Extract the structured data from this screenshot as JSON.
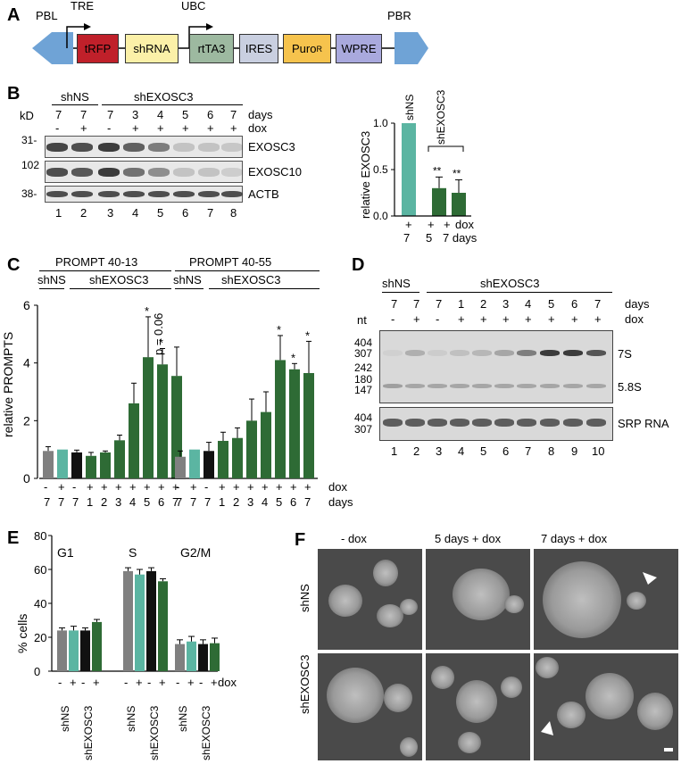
{
  "panels": {
    "A": {
      "letter": "A",
      "elements": [
        "PBL",
        "TRE",
        "tRFP",
        "shRNA",
        "UBC",
        "rtTA3",
        "IRES",
        "Puro",
        "R",
        "WPRE",
        "PBR"
      ],
      "colors": {
        "tRFP": "#c0202a",
        "shRNA": "#fbf0a8",
        "rtTA3": "#9db9a0",
        "IRES": "#c9cfe0",
        "Puro": "#f6c34d",
        "WPRE": "#a9a9dd",
        "arrow": "#6fa3d6"
      }
    },
    "B": {
      "letter": "B",
      "groups": [
        "shNS",
        "shEXOSC3"
      ],
      "kd": "kD",
      "days_label": "days",
      "dox_label": "dox",
      "days": [
        "7",
        "7",
        "7",
        "3",
        "4",
        "5",
        "6",
        "7"
      ],
      "dox": [
        "-",
        "+",
        "-",
        "+",
        "+",
        "+",
        "+",
        "+"
      ],
      "markers": [
        "31-",
        "102",
        "38-"
      ],
      "blots": [
        "EXOSC3",
        "EXOSC10",
        "ACTB"
      ],
      "lanes": [
        "1",
        "2",
        "3",
        "4",
        "5",
        "6",
        "7",
        "8"
      ],
      "bar": {
        "ylabel": "relative EXOSC3",
        "yticks": [
          "1.0",
          "0.5",
          "0.0"
        ],
        "labels": [
          "shNS",
          "shEXOSC3"
        ],
        "sig": [
          "**",
          "**"
        ],
        "dox": [
          "+",
          "+",
          "+",
          "dox"
        ],
        "days": [
          "7",
          "5",
          "7 days"
        ]
      }
    },
    "C": {
      "letter": "C",
      "titles": [
        "PROMPT 40-13",
        "PROMPT 40-55"
      ],
      "groups": [
        "shNS",
        "shEXOSC3",
        "shNS",
        "shEXOSC3"
      ],
      "ylabel": "relative PROMPTS",
      "yticks": [
        "6",
        "4",
        "2",
        "0"
      ],
      "p_label": "p = 0.06",
      "sig": "*",
      "dox": [
        "-",
        "+",
        "-",
        "+",
        "+",
        "+",
        "+",
        "+",
        "+",
        "+"
      ],
      "days": [
        "7",
        "7",
        "7",
        "1",
        "2",
        "3",
        "4",
        "5",
        "6",
        "7"
      ],
      "dox_label": "dox",
      "days_label": "days"
    },
    "D": {
      "letter": "D",
      "groups": [
        "shNS",
        "shEXOSC3"
      ],
      "nt": "nt",
      "days_label": "days",
      "dox_label": "dox",
      "days": [
        "7",
        "7",
        "7",
        "1",
        "2",
        "3",
        "4",
        "5",
        "6",
        "7"
      ],
      "dox": [
        "-",
        "+",
        "-",
        "+",
        "+",
        "+",
        "+",
        "+",
        "+",
        "+"
      ],
      "markers_top": [
        "404",
        "307",
        "242",
        "180",
        "147"
      ],
      "markers_bottom": [
        "404",
        "307"
      ],
      "bands": [
        "7S",
        "5.8S",
        "SRP RNA"
      ],
      "lanes": [
        "1",
        "2",
        "3",
        "4",
        "5",
        "6",
        "7",
        "8",
        "9",
        "10"
      ]
    },
    "E": {
      "letter": "E",
      "ylabel": "% cells",
      "yticks": [
        "80",
        "60",
        "40",
        "20",
        "0"
      ],
      "phases": [
        "G1",
        "S",
        "G2/M"
      ],
      "dox": [
        "-",
        "+",
        "-",
        "+",
        "-",
        "+",
        "-",
        "+",
        "-",
        "+",
        "-",
        "+"
      ],
      "dox_label": "dox",
      "groups": [
        "shNS",
        "shEXOSC3",
        "shNS",
        "shEXOSC3",
        "shNS",
        "shEXOSC3"
      ]
    },
    "F": {
      "letter": "F",
      "cols": [
        "- dox",
        "5 days + dox",
        "7 days + dox"
      ],
      "rows": [
        "shNS",
        "shEXOSC3"
      ]
    }
  },
  "chart_data": [
    {
      "type": "bar",
      "panel": "B",
      "categories": [
        "shNS 7d +dox",
        "shEXOSC3 5d +dox",
        "shEXOSC3 7d +dox"
      ],
      "values": [
        1.0,
        0.3,
        0.25
      ],
      "errors": [
        0,
        0.12,
        0.14
      ],
      "colors": [
        "#5bb5a2",
        "#2e6b35",
        "#2e6b35"
      ],
      "ylim": [
        0,
        1.0
      ],
      "ylabel": "relative EXOSC3"
    },
    {
      "type": "bar",
      "panel": "C",
      "series": [
        {
          "name": "PROMPT 40-13",
          "values": [
            0.95,
            1.0,
            0.9,
            0.78,
            0.9,
            1.32,
            2.6,
            4.2,
            3.95,
            3.55
          ],
          "errors": [
            0.15,
            0,
            0.08,
            0.12,
            0.05,
            0.18,
            0.7,
            1.4,
            0.55,
            1.0
          ]
        },
        {
          "name": "PROMPT 40-55",
          "values": [
            0.75,
            1.0,
            0.95,
            1.3,
            1.4,
            2.0,
            2.3,
            4.1,
            3.78,
            3.65
          ],
          "errors": [
            0.2,
            0,
            0.3,
            0.3,
            0.35,
            0.75,
            0.7,
            0.85,
            0.2,
            1.1
          ]
        }
      ],
      "colors": [
        "#808080",
        "#5bb5a2",
        "#111111",
        "#2e6b35",
        "#2e6b35",
        "#2e6b35",
        "#2e6b35",
        "#2e6b35",
        "#2e6b35",
        "#2e6b35"
      ],
      "ylim": [
        0,
        6
      ],
      "ylabel": "relative PROMPTS"
    },
    {
      "type": "bar",
      "panel": "E",
      "categories": [
        "G1",
        "S",
        "G2/M"
      ],
      "series": [
        {
          "name": "shNS -dox",
          "values": [
            24,
            59,
            16
          ],
          "errors": [
            1.5,
            2,
            2.5
          ]
        },
        {
          "name": "shNS +dox",
          "values": [
            24,
            57,
            17.5
          ],
          "errors": [
            2.5,
            3,
            3
          ]
        },
        {
          "name": "shEXOSC3 -dox",
          "values": [
            24,
            59,
            16
          ],
          "errors": [
            1.5,
            2,
            2.5
          ]
        },
        {
          "name": "shEXOSC3 +dox",
          "values": [
            29,
            53,
            16.5
          ],
          "errors": [
            1.5,
            1.5,
            3
          ]
        }
      ],
      "colors": [
        "#808080",
        "#5bb5a2",
        "#111111",
        "#2e6b35"
      ],
      "ylim": [
        0,
        80
      ],
      "ylabel": "% cells"
    }
  ]
}
